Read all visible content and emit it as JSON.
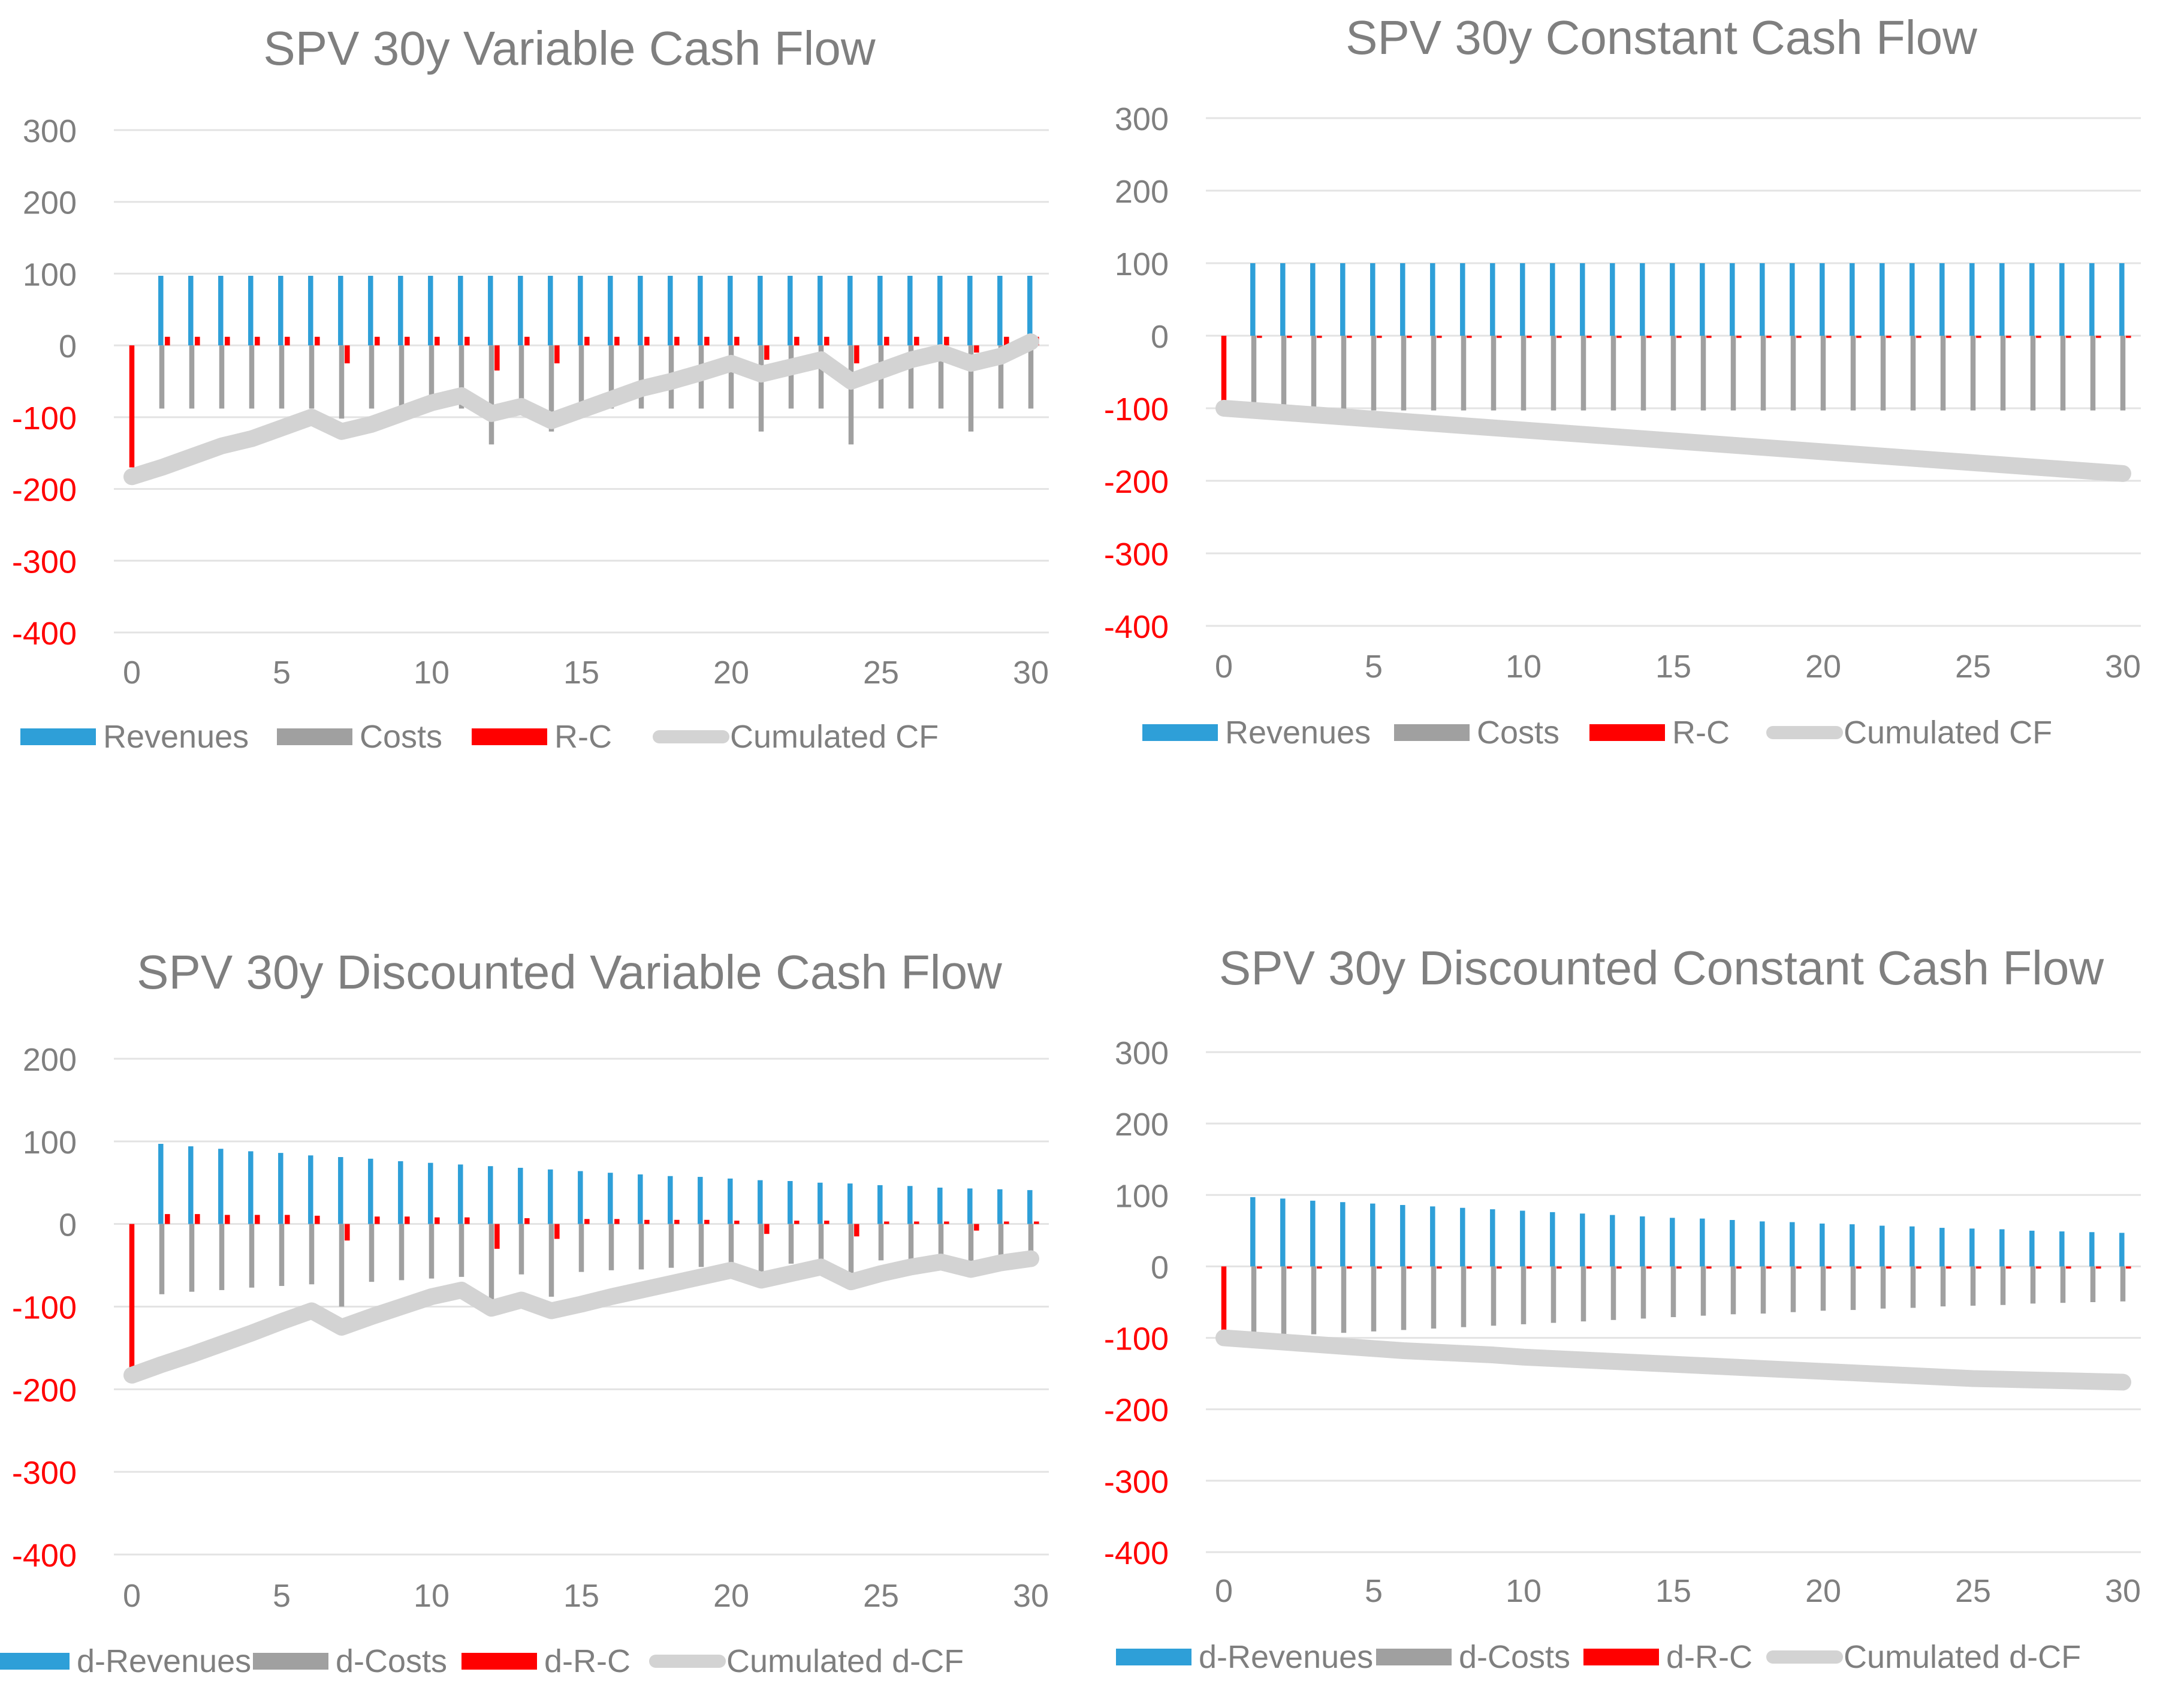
{
  "colors": {
    "revenues": "#2e9fd8",
    "costs": "#a0a0a0",
    "rc": "#ff0000",
    "cum": "#d3d3d3",
    "tick_pos": "#7f7f7f",
    "tick_neg": "#ff0000",
    "grid": "#e3e3e3",
    "title": "#7f7f7f"
  },
  "chart_data": [
    {
      "type": "bar",
      "title": "SPV 30y Variable Cash Flow",
      "xlabel": "",
      "ylabel": "",
      "ylim": [
        -400,
        300
      ],
      "yticks": [
        "300",
        "200",
        "100",
        "0",
        "-100",
        "-200",
        "-300",
        "-400"
      ],
      "xticks": [
        "0",
        "5",
        "10",
        "15",
        "20",
        "25",
        "30"
      ],
      "legend": [
        "Revenues",
        "Costs",
        "R-C",
        "Cumulated CF"
      ],
      "x": [
        0,
        1,
        2,
        3,
        4,
        5,
        6,
        7,
        8,
        9,
        10,
        11,
        12,
        13,
        14,
        15,
        16,
        17,
        18,
        19,
        20,
        21,
        22,
        23,
        24,
        25,
        26,
        27,
        28,
        29,
        30
      ],
      "series": [
        {
          "name": "Revenues",
          "values": [
            0,
            97,
            97,
            97,
            97,
            97,
            97,
            97,
            97,
            97,
            97,
            97,
            97,
            97,
            97,
            97,
            97,
            97,
            97,
            97,
            97,
            97,
            97,
            97,
            97,
            97,
            97,
            97,
            97,
            97,
            97
          ]
        },
        {
          "name": "Costs",
          "values": [
            0,
            -88,
            -88,
            -88,
            -88,
            -88,
            -88,
            -102,
            -88,
            -88,
            -88,
            -88,
            -138,
            -88,
            -120,
            -88,
            -88,
            -88,
            -88,
            -88,
            -88,
            -120,
            -88,
            -88,
            -138,
            -88,
            -88,
            -88,
            -120,
            -88,
            -88
          ]
        },
        {
          "name": "R-C",
          "values": [
            -170,
            12,
            12,
            12,
            12,
            12,
            12,
            -25,
            12,
            12,
            12,
            12,
            -35,
            12,
            -25,
            12,
            12,
            12,
            12,
            12,
            12,
            -20,
            12,
            12,
            -25,
            12,
            12,
            12,
            -10,
            12,
            12
          ]
        },
        {
          "name": "Cumulated CF",
          "values": [
            -183,
            -170,
            -155,
            -140,
            -130,
            -115,
            -100,
            -120,
            -110,
            -95,
            -80,
            -70,
            -95,
            -85,
            -105,
            -90,
            -75,
            -60,
            -50,
            -38,
            -25,
            -40,
            -30,
            -20,
            -50,
            -35,
            -20,
            -10,
            -25,
            -15,
            5
          ]
        }
      ]
    },
    {
      "type": "bar",
      "title": "SPV 30y Constant Cash Flow",
      "xlabel": "",
      "ylabel": "",
      "ylim": [
        -400,
        300
      ],
      "yticks": [
        "300",
        "200",
        "100",
        "0",
        "-100",
        "-200",
        "-300",
        "-400"
      ],
      "xticks": [
        "0",
        "5",
        "10",
        "15",
        "20",
        "25",
        "30"
      ],
      "legend": [
        "Revenues",
        "Costs",
        "R-C",
        "Cumulated CF"
      ],
      "x": [
        0,
        1,
        2,
        3,
        4,
        5,
        6,
        7,
        8,
        9,
        10,
        11,
        12,
        13,
        14,
        15,
        16,
        17,
        18,
        19,
        20,
        21,
        22,
        23,
        24,
        25,
        26,
        27,
        28,
        29,
        30
      ],
      "series": [
        {
          "name": "Revenues",
          "values": [
            0,
            100,
            100,
            100,
            100,
            100,
            100,
            100,
            100,
            100,
            100,
            100,
            100,
            100,
            100,
            100,
            100,
            100,
            100,
            100,
            100,
            100,
            100,
            100,
            100,
            100,
            100,
            100,
            100,
            100,
            100
          ]
        },
        {
          "name": "Costs",
          "values": [
            0,
            -103,
            -103,
            -103,
            -103,
            -103,
            -103,
            -103,
            -103,
            -103,
            -103,
            -103,
            -103,
            -103,
            -103,
            -103,
            -103,
            -103,
            -103,
            -103,
            -103,
            -103,
            -103,
            -103,
            -103,
            -103,
            -103,
            -103,
            -103,
            -103,
            -103
          ]
        },
        {
          "name": "R-C",
          "values": [
            -90,
            -3,
            -3,
            -3,
            -3,
            -3,
            -3,
            -3,
            -3,
            -3,
            -3,
            -3,
            -3,
            -3,
            -3,
            -3,
            -3,
            -3,
            -3,
            -3,
            -3,
            -3,
            -3,
            -3,
            -3,
            -3,
            -3,
            -3,
            -3,
            -3,
            -3
          ]
        },
        {
          "name": "Cumulated CF",
          "values": [
            -100,
            -103,
            -106,
            -109,
            -112,
            -115,
            -118,
            -121,
            -124,
            -127,
            -130,
            -133,
            -136,
            -139,
            -142,
            -145,
            -148,
            -151,
            -154,
            -157,
            -160,
            -163,
            -166,
            -169,
            -172,
            -175,
            -178,
            -181,
            -184,
            -187,
            -190
          ]
        }
      ]
    },
    {
      "type": "bar",
      "title": "SPV 30y Discounted Variable Cash Flow",
      "xlabel": "",
      "ylabel": "",
      "ylim": [
        -400,
        200
      ],
      "yticks": [
        "200",
        "100",
        "0",
        "-100",
        "-200",
        "-300",
        "-400"
      ],
      "xticks": [
        "0",
        "5",
        "10",
        "15",
        "20",
        "25",
        "30"
      ],
      "legend": [
        "d-Revenues",
        "d-Costs",
        "d-R-C",
        "Cumulated d-CF"
      ],
      "x": [
        0,
        1,
        2,
        3,
        4,
        5,
        6,
        7,
        8,
        9,
        10,
        11,
        12,
        13,
        14,
        15,
        16,
        17,
        18,
        19,
        20,
        21,
        22,
        23,
        24,
        25,
        26,
        27,
        28,
        29,
        30
      ],
      "series": [
        {
          "name": "d-Revenues",
          "values": [
            0,
            97,
            94,
            91,
            88,
            86,
            83,
            81,
            79,
            76,
            74,
            72,
            70,
            68,
            66,
            64,
            62,
            60,
            58,
            57,
            55,
            53,
            52,
            50,
            49,
            47,
            46,
            44,
            43,
            42,
            41
          ]
        },
        {
          "name": "d-Costs",
          "values": [
            0,
            -85,
            -82,
            -80,
            -77,
            -75,
            -73,
            -100,
            -70,
            -68,
            -66,
            -64,
            -95,
            -61,
            -88,
            -58,
            -56,
            -55,
            -53,
            -52,
            -50,
            -70,
            -48,
            -46,
            -63,
            -44,
            -43,
            -41,
            -55,
            -39,
            -38
          ]
        },
        {
          "name": "d-R-C",
          "values": [
            -175,
            12,
            12,
            11,
            11,
            11,
            10,
            -20,
            9,
            9,
            8,
            8,
            -30,
            7,
            -18,
            6,
            6,
            5,
            5,
            5,
            4,
            -12,
            4,
            4,
            -15,
            3,
            3,
            3,
            -8,
            3,
            3
          ]
        },
        {
          "name": "Cumulated d-CF",
          "values": [
            -183,
            -170,
            -158,
            -145,
            -132,
            -118,
            -105,
            -125,
            -112,
            -100,
            -88,
            -80,
            -102,
            -92,
            -105,
            -97,
            -88,
            -80,
            -72,
            -64,
            -56,
            -68,
            -60,
            -52,
            -70,
            -60,
            -52,
            -46,
            -55,
            -47,
            -42
          ]
        }
      ]
    },
    {
      "type": "bar",
      "title": "SPV 30y Discounted Constant Cash Flow",
      "xlabel": "",
      "ylabel": "",
      "ylim": [
        -400,
        300
      ],
      "yticks": [
        "300",
        "200",
        "100",
        "0",
        "-100",
        "-200",
        "-300",
        "-400"
      ],
      "xticks": [
        "0",
        "5",
        "10",
        "15",
        "20",
        "25",
        "30"
      ],
      "legend": [
        "d-Revenues",
        "d-Costs",
        "d-R-C",
        "Cumulated d-CF"
      ],
      "x": [
        0,
        1,
        2,
        3,
        4,
        5,
        6,
        7,
        8,
        9,
        10,
        11,
        12,
        13,
        14,
        15,
        16,
        17,
        18,
        19,
        20,
        21,
        22,
        23,
        24,
        25,
        26,
        27,
        28,
        29,
        30
      ],
      "series": [
        {
          "name": "d-Revenues",
          "values": [
            0,
            97,
            95,
            92,
            90,
            88,
            86,
            84,
            82,
            80,
            78,
            76,
            74,
            72,
            70,
            68,
            67,
            65,
            63,
            62,
            60,
            59,
            57,
            56,
            54,
            53,
            52,
            50,
            49,
            48,
            47
          ]
        },
        {
          "name": "d-Costs",
          "values": [
            0,
            -100,
            -98,
            -95,
            -93,
            -91,
            -89,
            -87,
            -85,
            -83,
            -81,
            -79,
            -77,
            -75,
            -73,
            -71,
            -69,
            -67,
            -66,
            -64,
            -62,
            -61,
            -59,
            -58,
            -56,
            -55,
            -54,
            -52,
            -51,
            -50,
            -49
          ]
        },
        {
          "name": "d-R-C",
          "values": [
            -90,
            -3,
            -3,
            -3,
            -3,
            -3,
            -3,
            -3,
            -3,
            -3,
            -3,
            -3,
            -3,
            -3,
            -3,
            -3,
            -3,
            -3,
            -3,
            -3,
            -3,
            -3,
            -3,
            -3,
            -3,
            -3,
            -3,
            -3,
            -3,
            -3,
            -3
          ]
        },
        {
          "name": "Cumulated d-CF",
          "values": [
            -100,
            -103,
            -106,
            -109,
            -112,
            -115,
            -118,
            -120,
            -122,
            -124,
            -127,
            -129,
            -131,
            -133,
            -135,
            -137,
            -139,
            -141,
            -143,
            -145,
            -147,
            -149,
            -151,
            -153,
            -155,
            -157,
            -158,
            -159,
            -160,
            -161,
            -162
          ]
        }
      ]
    }
  ]
}
